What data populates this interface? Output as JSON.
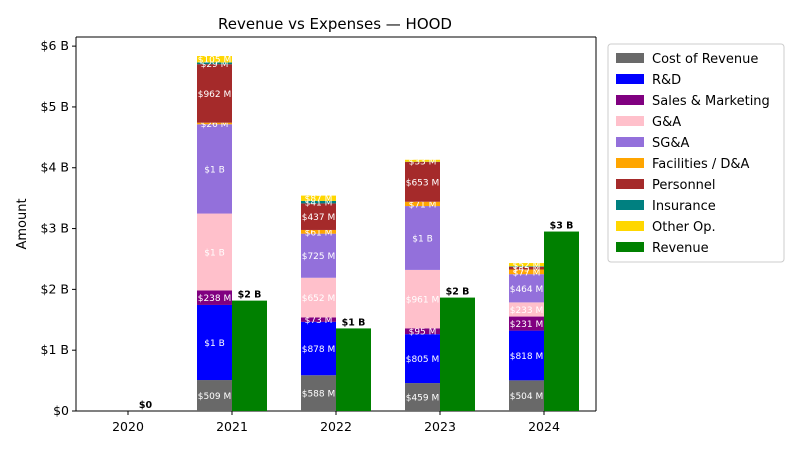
{
  "chart_data": {
    "type": "bar",
    "title": "Revenue vs Expenses — HOOD",
    "xlabel": "",
    "ylabel": "Amount",
    "categories": [
      "2020",
      "2021",
      "2022",
      "2023",
      "2024"
    ],
    "ylim": [
      0,
      6.15
    ],
    "y_unit": "billions USD",
    "y_ticks": [
      {
        "value": 0,
        "label": "$0"
      },
      {
        "value": 1,
        "label": "$1 B"
      },
      {
        "value": 2,
        "label": "$2 B"
      },
      {
        "value": 3,
        "label": "$3 B"
      },
      {
        "value": 4,
        "label": "$4 B"
      },
      {
        "value": 5,
        "label": "$5 B"
      },
      {
        "value": 6,
        "label": "$6 B"
      }
    ],
    "legend_position": "outside-right",
    "expense_series": [
      {
        "name": "Cost of Revenue",
        "color": "#696969",
        "values": [
          0,
          0.509,
          0.588,
          0.459,
          0.504
        ],
        "labels": [
          "",
          "$509 M",
          "$588 M",
          "$459 M",
          "$504 M"
        ]
      },
      {
        "name": "R&D",
        "color": "#0000ff",
        "values": [
          0,
          1.235,
          0.878,
          0.805,
          0.818
        ],
        "labels": [
          "",
          "$1 B",
          "$878 M",
          "$805 M",
          "$818 M"
        ]
      },
      {
        "name": "Sales & Marketing",
        "color": "#800080",
        "values": [
          0,
          0.238,
          0.073,
          0.095,
          0.231
        ],
        "labels": [
          "",
          "$238 M",
          "$73 M",
          "$95 M",
          "$231 M"
        ]
      },
      {
        "name": "G&A",
        "color": "#ffc0cb",
        "values": [
          0,
          1.265,
          0.652,
          0.961,
          0.233
        ],
        "labels": [
          "",
          "$1 B",
          "$652 M",
          "$961 M",
          "$233 M"
        ]
      },
      {
        "name": "SG&A",
        "color": "#9370db",
        "values": [
          0,
          1.468,
          0.725,
          1.05,
          0.464
        ],
        "labels": [
          "",
          "$1 B",
          "$725 M",
          "$1 B",
          "$464 M"
        ]
      },
      {
        "name": "Facilities / D&A",
        "color": "#ffa500",
        "values": [
          0,
          0.026,
          0.061,
          0.071,
          0.077
        ],
        "labels": [
          "",
          "$26 M",
          "$61 M",
          "$71 M",
          "$77 M"
        ]
      },
      {
        "name": "Personnel",
        "color": "#a52a2a",
        "values": [
          0,
          0.962,
          0.437,
          0.653,
          0.045
        ],
        "labels": [
          "",
          "$962 M",
          "$437 M",
          "$653 M",
          "$45 M"
        ]
      },
      {
        "name": "Insurance",
        "color": "#008080",
        "values": [
          0,
          0.029,
          0.041,
          0.004,
          0.009
        ],
        "labels": [
          "",
          "$29 M",
          "$41 M",
          "",
          ""
        ]
      },
      {
        "name": "Other Op.",
        "color": "#ffd700",
        "values": [
          0,
          0.105,
          0.087,
          0.033,
          0.052
        ],
        "labels": [
          "",
          "$105 M",
          "$87 M",
          "$33 M",
          "$52 M"
        ]
      }
    ],
    "revenue_series": {
      "name": "Revenue",
      "color": "#008000",
      "values": [
        0,
        1.815,
        1.358,
        1.865,
        2.951
      ],
      "labels": [
        "$0",
        "$2 B",
        "$1 B",
        "$2 B",
        "$3 B"
      ]
    }
  }
}
